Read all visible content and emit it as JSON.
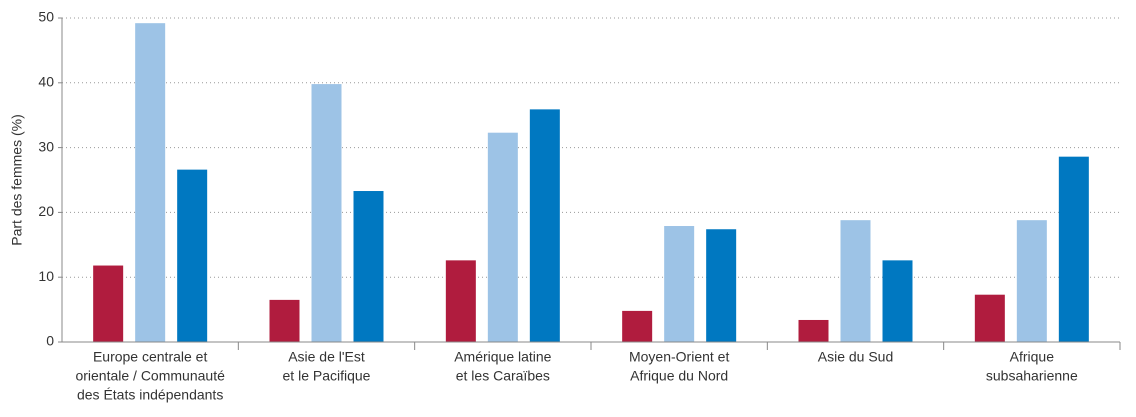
{
  "chart_data": {
    "type": "bar",
    "ylabel": "Part des femmes (%)",
    "categories": [
      [
        "Europe centrale et",
        "orientale / Communauté",
        "des États indépendants"
      ],
      [
        "Asie de l'Est",
        "et le Pacifique"
      ],
      [
        "Amérique latine",
        "et les Caraïbes"
      ],
      [
        "Moyen-Orient et",
        "Afrique du Nord"
      ],
      [
        "Asie du Sud"
      ],
      [
        "Afrique",
        "subsaharienne"
      ]
    ],
    "series": [
      {
        "color": "#b01c3e",
        "values": [
          11.8,
          6.5,
          12.6,
          4.8,
          3.4,
          7.3
        ]
      },
      {
        "color": "#9dc3e6",
        "values": [
          49.2,
          39.8,
          32.3,
          17.9,
          18.8,
          18.8
        ]
      },
      {
        "color": "#0078c1",
        "values": [
          26.6,
          23.3,
          35.9,
          17.4,
          12.6,
          28.6
        ]
      }
    ],
    "ylim": [
      0,
      50
    ],
    "yticks": [
      0,
      10,
      20,
      30,
      40,
      50
    ],
    "grid": true
  }
}
